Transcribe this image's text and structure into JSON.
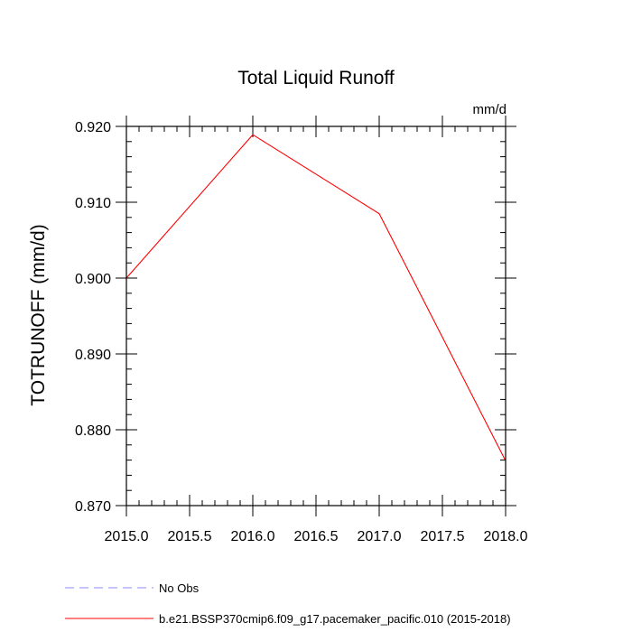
{
  "chart_data": {
    "type": "line",
    "title": "Total Liquid Runoff",
    "units": "mm/d",
    "xlabel": "",
    "ylabel": "TOTRUNOFF  (mm/d)",
    "xlim": [
      2015.0,
      2018.0
    ],
    "ylim": [
      0.87,
      0.92
    ],
    "x_major_ticks": [
      2015.0,
      2015.5,
      2016.0,
      2016.5,
      2017.0,
      2017.5,
      2018.0
    ],
    "x_tick_labels": [
      "2015.0",
      "2015.5",
      "2016.0",
      "2016.5",
      "2017.0",
      "2017.5",
      "2018.0"
    ],
    "y_major_ticks": [
      0.87,
      0.88,
      0.89,
      0.9,
      0.91,
      0.92
    ],
    "y_tick_labels": [
      "0.870",
      "0.880",
      "0.890",
      "0.900",
      "0.910",
      "0.920"
    ],
    "x_minor_step": 0.1,
    "y_minor_step": 0.002,
    "grid": false,
    "legend_position": "bottom-left, below plot",
    "series": [
      {
        "name": "b.e21.BSSP370cmip6.f09_g17.pacemaker_pacific.010 (2015-2018)",
        "color": "#ff0000",
        "style": "solid",
        "x": [
          2015.0,
          2016.0,
          2017.0,
          2018.0
        ],
        "y": [
          0.9,
          0.9189,
          0.9085,
          0.8759
        ]
      }
    ],
    "legend": [
      {
        "label": "No Obs",
        "color": "#8a8aff",
        "style": "dashed"
      },
      {
        "label": "b.e21.BSSP370cmip6.f09_g17.pacemaker_pacific.010 (2015-2018)",
        "color": "#ff0000",
        "style": "solid"
      }
    ]
  }
}
